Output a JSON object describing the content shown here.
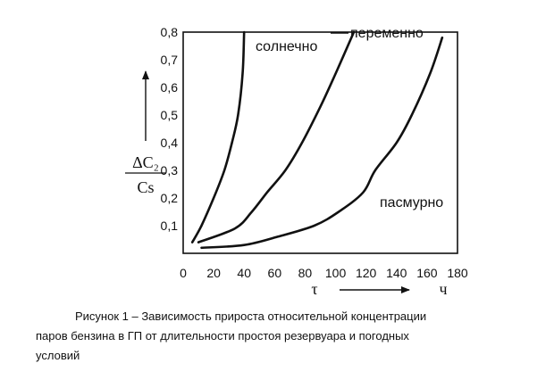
{
  "chart_data": {
    "type": "line",
    "xlim": [
      0,
      180
    ],
    "ylim": [
      0,
      0.8
    ],
    "x_ticks": [
      "0",
      "20",
      "40",
      "60",
      "80",
      "100",
      "120",
      "140",
      "160",
      "180"
    ],
    "y_ticks": [
      "0,1",
      "0,2",
      "0,3",
      "0,4",
      "0,5",
      "0,6",
      "0,7",
      "0,8"
    ],
    "xlabel": "τ",
    "x_unit": "ч",
    "ylabel_numerator": "ΔC₂",
    "ylabel_denominator": "Cs",
    "grid": false,
    "series": [
      {
        "name": "солнечно",
        "x": [
          6,
          12,
          20,
          27,
          32,
          36,
          39,
          40
        ],
        "y": [
          0.04,
          0.1,
          0.2,
          0.3,
          0.4,
          0.5,
          0.65,
          0.8
        ]
      },
      {
        "name": "переменно",
        "x": [
          10,
          34,
          45,
          55,
          67,
          78,
          90,
          100,
          112
        ],
        "y": [
          0.04,
          0.09,
          0.15,
          0.22,
          0.3,
          0.4,
          0.53,
          0.65,
          0.8
        ]
      },
      {
        "name": "пасмурно",
        "x": [
          12,
          40,
          62,
          86,
          102,
          118,
          126,
          140,
          150,
          162,
          170
        ],
        "y": [
          0.02,
          0.03,
          0.06,
          0.1,
          0.15,
          0.22,
          0.3,
          0.4,
          0.5,
          0.65,
          0.78
        ]
      }
    ]
  },
  "caption": {
    "line1": "Рисунок    1 – Зависимость прироста относительной концентрации",
    "line2": "паров бензина в ГП от длительности простоя резервуара и погодных",
    "line3": "условий"
  }
}
